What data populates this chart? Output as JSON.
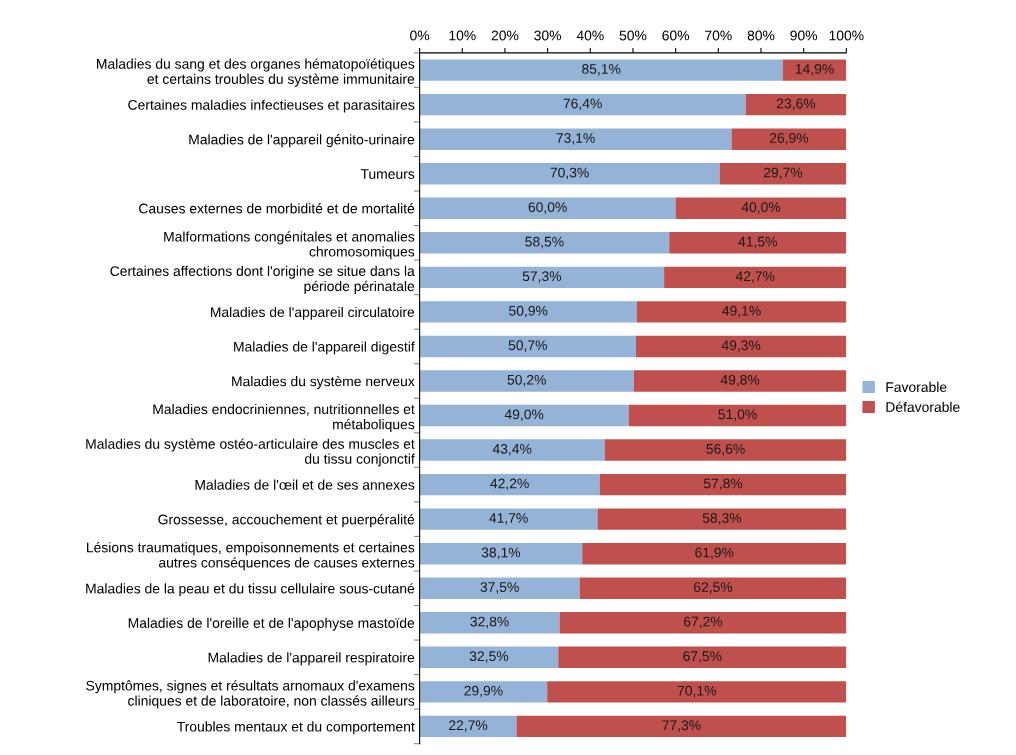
{
  "chart_data": {
    "type": "bar",
    "orientation": "horizontal",
    "stacked": true,
    "categories": [
      "Maladies du sang et des organes hématopoïétiques\net certains troubles du système immunitaire",
      "Certaines maladies infectieuses et parasitaires",
      "Maladies de l'appareil génito-urinaire",
      "Tumeurs",
      "Causes externes de morbidité et de mortalité",
      "Malformations congénitales et anomalies\nchromosomiques",
      "Certaines affections dont l'origine se situe dans la\npériode périnatale",
      "Maladies de l'appareil circulatoire",
      "Maladies de l'appareil digestif",
      "Maladies du système nerveux",
      "Maladies endocriniennes, nutritionnelles et\nmétaboliques",
      "Maladies du système ostéo-articulaire des muscles et\ndu tissu conjonctif",
      "Maladies de l'œil et de ses annexes",
      "Grossesse, accouchement et puerpéralité",
      "Lésions traumatiques, empoisonnements et certaines\nautres conséquences de causes externes",
      "Maladies de la peau et du tissu cellulaire sous-cutané",
      "Maladies de l'oreille et de l'apophyse mastoïde",
      "Maladies de l'appareil respiratoire",
      "Symptômes, signes et résultats arnomaux d'examens\ncliniques et de laboratoire, non classés ailleurs",
      "Troubles mentaux et du comportement"
    ],
    "series": [
      {
        "name": "Favorable",
        "color": "#95b3d7",
        "values": [
          85.1,
          76.4,
          73.1,
          70.3,
          60.0,
          58.5,
          57.3,
          50.9,
          50.7,
          50.2,
          49.0,
          43.4,
          42.2,
          41.7,
          38.1,
          37.5,
          32.8,
          32.5,
          29.9,
          22.7
        ],
        "value_labels": [
          "85,1%",
          "76,4%",
          "73,1%",
          "70,3%",
          "60,0%",
          "58,5%",
          "57,3%",
          "50,9%",
          "50,7%",
          "50,2%",
          "49,0%",
          "43,4%",
          "42,2%",
          "41,7%",
          "38,1%",
          "37,5%",
          "32,8%",
          "32,5%",
          "29,9%",
          "22,7%"
        ]
      },
      {
        "name": "Défavorable",
        "color": "#c0504d",
        "values": [
          14.9,
          23.6,
          26.9,
          29.7,
          40.0,
          41.5,
          42.7,
          49.1,
          49.3,
          49.8,
          51.0,
          56.6,
          57.8,
          58.3,
          61.9,
          62.5,
          67.2,
          67.5,
          70.1,
          77.3
        ],
        "value_labels": [
          "14,9%",
          "23,6%",
          "26,9%",
          "29,7%",
          "40,0%",
          "41,5%",
          "42,7%",
          "49,1%",
          "49,3%",
          "49,8%",
          "51,0%",
          "56,6%",
          "57,8%",
          "58,3%",
          "61,9%",
          "62,5%",
          "67,2%",
          "67,5%",
          "70,1%",
          "77,3%"
        ]
      }
    ],
    "xlim": [
      0,
      100
    ],
    "xticks": [
      {
        "value": 0,
        "label": "0%"
      },
      {
        "value": 10,
        "label": "10%"
      },
      {
        "value": 20,
        "label": "20%"
      },
      {
        "value": 30,
        "label": "30%"
      },
      {
        "value": 40,
        "label": "40%"
      },
      {
        "value": 50,
        "label": "50%"
      },
      {
        "value": 60,
        "label": "60%"
      },
      {
        "value": 70,
        "label": "70%"
      },
      {
        "value": 80,
        "label": "80%"
      },
      {
        "value": 90,
        "label": "90%"
      },
      {
        "value": 100,
        "label": "100%"
      }
    ],
    "legend": "right",
    "grid": false
  }
}
